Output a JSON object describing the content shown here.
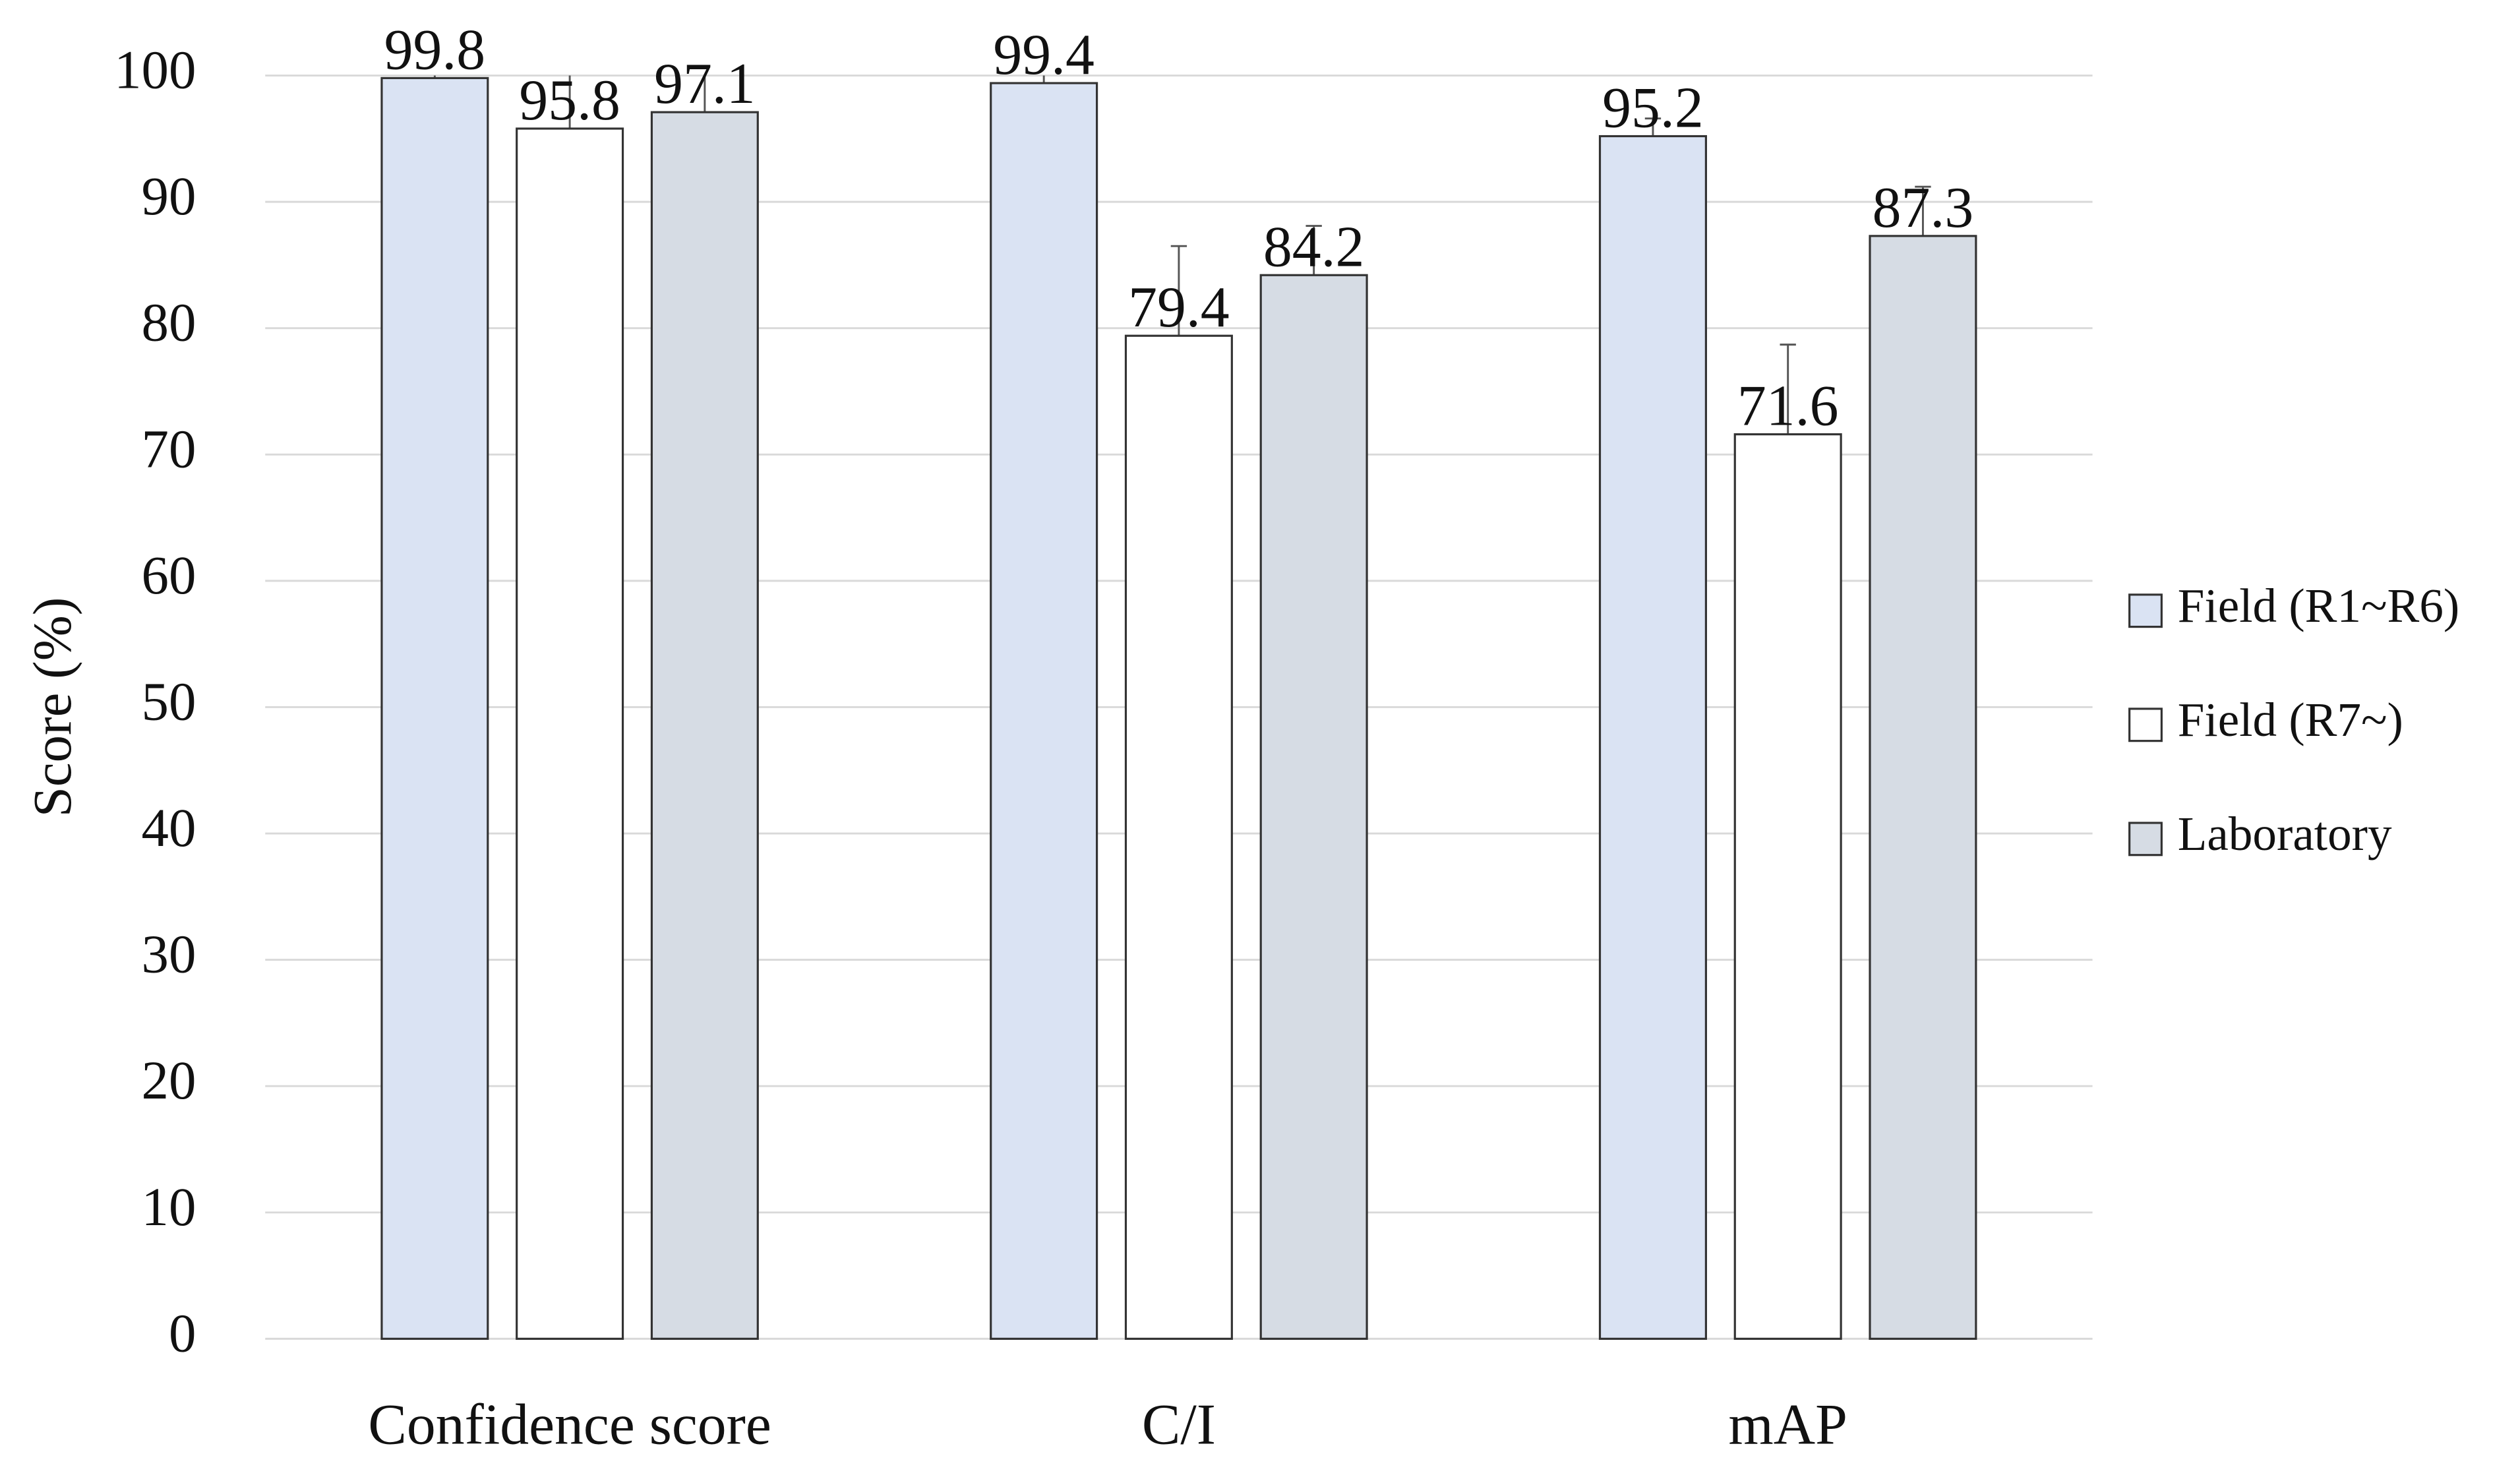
{
  "chart_data": {
    "type": "bar",
    "y_label": "Score (%)",
    "categories": [
      "Confidence score",
      "C/I",
      "mAP"
    ],
    "series": [
      {
        "name": "Field (R1~R6)",
        "color": "#dae3f3",
        "values": [
          99.8,
          99.4,
          95.2
        ],
        "errors": [
          1.7,
          1.4,
          1.4
        ]
      },
      {
        "name": "Field (R7~)",
        "color": "#ffffff",
        "values": [
          95.8,
          79.4,
          71.6
        ],
        "errors": [
          7.2,
          7.1,
          7.1
        ]
      },
      {
        "name": "Laboratory",
        "color": "#d6dce4",
        "values": [
          97.1,
          84.2,
          87.3
        ],
        "errors": [
          3.9,
          3.9,
          3.9
        ]
      }
    ],
    "ylim": [
      0,
      100
    ],
    "yticks": [
      0,
      10,
      20,
      30,
      40,
      50,
      60,
      70,
      80,
      90,
      100
    ],
    "grid": true,
    "legend": "right"
  }
}
